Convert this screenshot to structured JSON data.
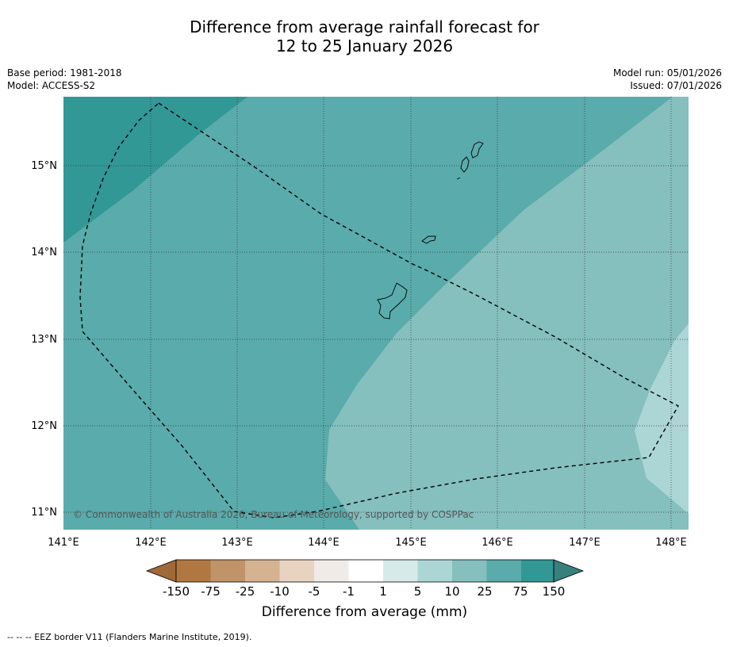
{
  "title": {
    "line1": "Difference from average rainfall forecast for",
    "line2": "12 to 25 January 2026"
  },
  "meta": {
    "base_period": "Base period: 1981-2018",
    "model": "Model: ACCESS-S2",
    "model_run": "Model run: 05/01/2026",
    "issued": "Issued: 07/01/2026"
  },
  "map": {
    "lat_labels": [
      "15°N",
      "14°N",
      "13°N",
      "12°N",
      "11°N"
    ],
    "lon_labels": [
      "141°E",
      "142°E",
      "143°E",
      "144°E",
      "145°E",
      "146°E",
      "147°E",
      "148°E"
    ],
    "copyright": "© Commonwealth of Australia 2026, Bureau of Meteorology, supported by COSPPac"
  },
  "colorbar": {
    "colors": {
      "below_min": "#a0693a",
      "c1": "#b07840",
      "c2": "#c09468",
      "c3": "#d4b292",
      "c4": "#e8d2c0",
      "c5": "#f0ebe7",
      "c6": "#ffffff",
      "c7": "#d6ebe9",
      "c8": "#acd6d5",
      "c9": "#85bfbe",
      "c10": "#5aabab",
      "c11": "#319896",
      "above_max": "#37807d"
    },
    "labels": [
      "-150",
      "-75",
      "-25",
      "-10",
      "-5",
      "-1",
      "1",
      "5",
      "10",
      "25",
      "75",
      "150"
    ],
    "title": "Difference from average (mm)"
  },
  "footer": "--  --  -- EEZ border V11 (Flanders Marine Institute, 2019)."
}
